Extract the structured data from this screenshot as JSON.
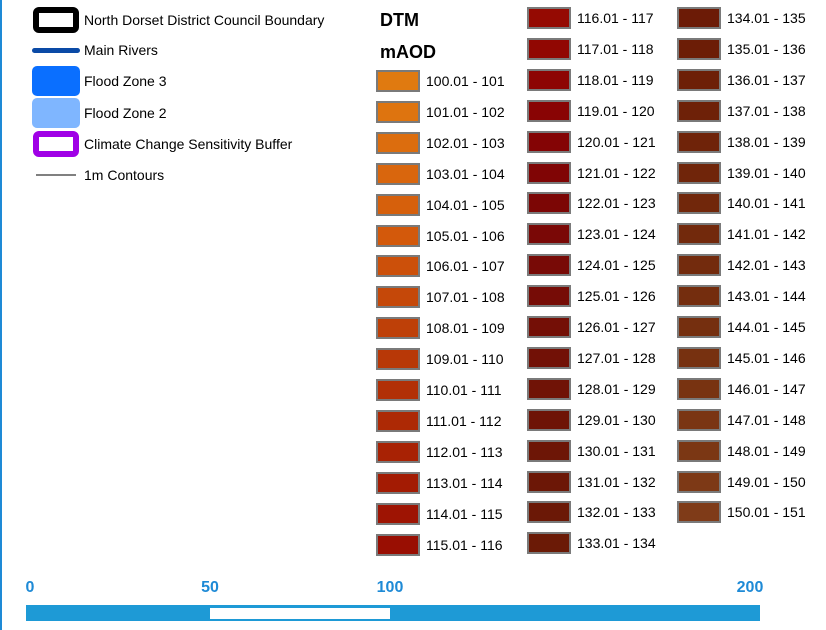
{
  "legend": [
    {
      "label": "North Dorset District Council Boundary",
      "icon": "boundary-icon"
    },
    {
      "label": "Main Rivers",
      "icon": "river-line-icon"
    },
    {
      "label": "Flood Zone 3",
      "icon": "flood-zone-3-icon"
    },
    {
      "label": "Flood Zone 2",
      "icon": "flood-zone-2-icon"
    },
    {
      "label": "Climate Change Sensitivity Buffer",
      "icon": "buffer-icon"
    },
    {
      "label": "1m Contours",
      "icon": "contour-line-icon"
    }
  ],
  "dtm": {
    "title": "DTM",
    "unit": "mAOD"
  },
  "ranges": [
    {
      "label": "100.01 - 101",
      "color": "#e07a10"
    },
    {
      "label": "101.01 - 102",
      "color": "#de740f"
    },
    {
      "label": "102.01 - 103",
      "color": "#dc6d0e"
    },
    {
      "label": "103.01 - 104",
      "color": "#d9660d"
    },
    {
      "label": "104.01 - 105",
      "color": "#d6600c"
    },
    {
      "label": "105.01 - 106",
      "color": "#d3590b"
    },
    {
      "label": "106.01 - 107",
      "color": "#cc500a"
    },
    {
      "label": "107.01 - 108",
      "color": "#c54809"
    },
    {
      "label": "108.01 - 109",
      "color": "#be4008"
    },
    {
      "label": "109.01 - 110",
      "color": "#b83807"
    },
    {
      "label": "110.01 - 111",
      "color": "#b23006"
    },
    {
      "label": "111.01 - 112",
      "color": "#ad2905"
    },
    {
      "label": "112.01 - 113",
      "color": "#a82204"
    },
    {
      "label": "113.01 - 114",
      "color": "#a31b03"
    },
    {
      "label": "114.01 - 115",
      "color": "#9e1403"
    },
    {
      "label": "115.01 - 116",
      "color": "#990e02"
    },
    {
      "label": "116.01 - 117",
      "color": "#950a02"
    },
    {
      "label": "117.01 - 118",
      "color": "#910702"
    },
    {
      "label": "118.01 - 119",
      "color": "#8d0503"
    },
    {
      "label": "119.01 - 120",
      "color": "#890404"
    },
    {
      "label": "120.01 - 121",
      "color": "#840405"
    },
    {
      "label": "121.01 - 122",
      "color": "#800505"
    },
    {
      "label": "122.01 - 123",
      "color": "#7c0605"
    },
    {
      "label": "123.01 - 124",
      "color": "#7a0806"
    },
    {
      "label": "124.01 - 125",
      "color": "#780a06"
    },
    {
      "label": "125.01 - 126",
      "color": "#760c06"
    },
    {
      "label": "126.01 - 127",
      "color": "#740f06"
    },
    {
      "label": "127.01 - 128",
      "color": "#721106"
    },
    {
      "label": "128.01 - 129",
      "color": "#701306"
    },
    {
      "label": "129.01 - 130",
      "color": "#6e1406"
    },
    {
      "label": "130.01 - 131",
      "color": "#6d1606"
    },
    {
      "label": "131.01 - 132",
      "color": "#6c1706"
    },
    {
      "label": "132.01 - 133",
      "color": "#6b1806"
    },
    {
      "label": "133.01 - 134",
      "color": "#6b1a06"
    },
    {
      "label": "134.01 - 135",
      "color": "#6c1b06"
    },
    {
      "label": "135.01 - 136",
      "color": "#6c1d06"
    },
    {
      "label": "136.01 - 137",
      "color": "#6d1f07"
    },
    {
      "label": "137.01 - 138",
      "color": "#6e2108"
    },
    {
      "label": "138.01 - 139",
      "color": "#6f2309"
    },
    {
      "label": "139.01 - 140",
      "color": "#70250a"
    },
    {
      "label": "140.01 - 141",
      "color": "#71270b"
    },
    {
      "label": "141.01 - 142",
      "color": "#72290c"
    },
    {
      "label": "142.01 - 143",
      "color": "#732b0d"
    },
    {
      "label": "143.01 - 144",
      "color": "#742d0e"
    },
    {
      "label": "144.01 - 145",
      "color": "#752f0f"
    },
    {
      "label": "145.01 - 146",
      "color": "#773110"
    },
    {
      "label": "146.01 - 147",
      "color": "#783311"
    },
    {
      "label": "147.01 - 148",
      "color": "#7a3513"
    },
    {
      "label": "148.01 - 149",
      "color": "#7b3714"
    },
    {
      "label": "149.01 - 150",
      "color": "#7d3916"
    },
    {
      "label": "150.01 - 151",
      "color": "#7f3b18"
    }
  ],
  "scale": {
    "labels": [
      "0",
      "50",
      "100",
      "200"
    ],
    "values": [
      0,
      50,
      100,
      200
    ],
    "max": 200
  }
}
